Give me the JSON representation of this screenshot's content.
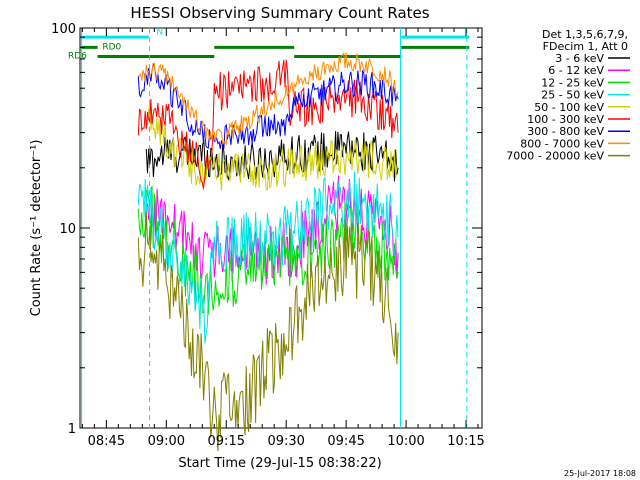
{
  "chart_data": {
    "type": "line",
    "title": "HESSI Observing Summary Count Rates",
    "xlabel": "Start Time (29-Jul-15 08:38:22)",
    "ylabel": "Count Rate (s⁻¹ detector⁻¹)",
    "y_scale": "log",
    "ylim": [
      1,
      100
    ],
    "xlim_minutes_of_day": [
      518.4,
      619.0
    ],
    "x_ticks": [
      {
        "label": "08:45",
        "t": 525
      },
      {
        "label": "09:00",
        "t": 540
      },
      {
        "label": "09:15",
        "t": 555
      },
      {
        "label": "09:30",
        "t": 570
      },
      {
        "label": "09:45",
        "t": 585
      },
      {
        "label": "10:00",
        "t": 600
      },
      {
        "label": "10:15",
        "t": 615
      }
    ],
    "y_ticks": [
      {
        "label": "1",
        "v": 1
      },
      {
        "label": "10",
        "v": 10
      },
      {
        "label": "100",
        "v": 100
      }
    ],
    "legend": {
      "header": [
        "Det 1,3,5,6,7,9,",
        "FDecim 1, Att 0"
      ],
      "placement": "right"
    },
    "time_stamp": "25-Jul-2017 18:08",
    "vertical_lines": {
      "solid_color": "#00e5e5",
      "solid_at": [
        518.8,
        598.6
      ],
      "dashed_at": [
        535.8,
        615.2
      ]
    },
    "flags": [
      {
        "name": "N",
        "color": "#00e5e5",
        "segments": [
          [
            518.6,
            535.6
          ],
          [
            598.8,
            615.8
          ]
        ],
        "level": 90
      },
      {
        "name": "RD0",
        "color": "#008000",
        "segments": [
          [
            518.6,
            522.8
          ],
          [
            552.0,
            572.0
          ],
          [
            598.8,
            615.8
          ]
        ],
        "level": 80
      },
      {
        "name": "RD6",
        "color": "#008000",
        "segments": [
          [
            522.8,
            552.0
          ],
          [
            572.0,
            598.8
          ]
        ],
        "level": 72
      }
    ],
    "series": [
      {
        "name": "3 - 6 keV",
        "color": "#000000",
        "x": [
          535,
          540,
          545,
          550,
          552,
          555,
          560,
          565,
          570,
          575,
          580,
          585,
          590,
          595,
          598
        ],
        "y": [
          21,
          24,
          23,
          23,
          22,
          21,
          21,
          22,
          23,
          24,
          24,
          25,
          24,
          22,
          20
        ]
      },
      {
        "name": "6 - 12 keV",
        "color": "#ff00ff",
        "x": [
          535,
          538,
          540,
          543,
          545,
          548,
          550,
          552,
          555,
          560,
          565,
          570,
          575,
          580,
          584,
          587,
          590,
          593,
          596,
          598
        ],
        "y": [
          11,
          12,
          10.5,
          9.5,
          8.5,
          8,
          7.5,
          7.5,
          7.5,
          7.5,
          7.5,
          7.7,
          8.5,
          11,
          14,
          13,
          11,
          10,
          9,
          7.5
        ]
      },
      {
        "name": "12 - 25 keV",
        "color": "#00e000",
        "x": [
          533,
          535,
          537,
          540,
          543,
          546,
          549,
          552,
          555,
          560,
          565,
          570,
          575,
          580,
          585,
          590,
          595,
          598
        ],
        "y": [
          12,
          13,
          11,
          8.5,
          7.5,
          6,
          5,
          5,
          5.5,
          6,
          6.5,
          7,
          7.5,
          8.5,
          9.5,
          9,
          7.5,
          6
        ]
      },
      {
        "name": "25 - 50 keV",
        "color": "#00e5e5",
        "x": [
          533,
          535,
          537,
          540,
          543,
          546,
          549,
          550,
          552,
          555,
          560,
          565,
          570,
          575,
          580,
          585,
          588,
          591,
          594,
          597,
          598
        ],
        "y": [
          14,
          13,
          11,
          9.5,
          6.5,
          5,
          4,
          3.5,
          8.5,
          8.5,
          8.5,
          8.5,
          9,
          10.5,
          12.5,
          13.5,
          13.5,
          12.5,
          11.5,
          10,
          9
        ]
      },
      {
        "name": "50 - 100 keV",
        "color": "#d0d000",
        "x": [
          535,
          537,
          540,
          543,
          546,
          549,
          552,
          555,
          560,
          565,
          570,
          575,
          580,
          585,
          590,
          595,
          598
        ],
        "y": [
          38,
          34,
          28,
          24,
          21,
          19,
          19,
          19,
          19,
          19.5,
          20,
          21,
          22,
          23,
          22,
          21,
          20
        ]
      },
      {
        "name": "100 - 300 keV",
        "color": "#ff0000",
        "x": [
          533,
          535,
          537,
          540,
          543,
          546,
          549,
          551,
          552,
          555,
          560,
          565,
          570,
          571,
          575,
          580,
          585,
          590,
          595,
          597,
          598
        ],
        "y": [
          35,
          37,
          40,
          35,
          29,
          24,
          20,
          18,
          48,
          49,
          50,
          52,
          56,
          39,
          40,
          42,
          46,
          42,
          37,
          33,
          30
        ]
      },
      {
        "name": "300 - 800 keV",
        "color": "#0000ff",
        "x": [
          533,
          535,
          537,
          540,
          543,
          546,
          549,
          552,
          555,
          560,
          565,
          570,
          571,
          575,
          580,
          585,
          590,
          595,
          598
        ],
        "y": [
          50,
          56,
          58,
          52,
          43,
          35,
          29,
          27,
          29,
          30,
          32,
          34,
          41,
          44,
          48,
          53,
          53,
          48,
          44
        ]
      },
      {
        "name": "800 - 7000 keV",
        "color": "#ff8c00",
        "x": [
          533,
          535,
          537,
          540,
          543,
          546,
          549,
          552,
          555,
          560,
          565,
          570,
          575,
          580,
          585,
          590,
          595,
          598
        ],
        "y": [
          54,
          60,
          63,
          58,
          49,
          39,
          31,
          28,
          29,
          34,
          40,
          48,
          56,
          64,
          68,
          66,
          58,
          48
        ]
      },
      {
        "name": "7000 - 20000 keV",
        "color": "#808000",
        "x": [
          533,
          535,
          537,
          540,
          543,
          546,
          549,
          550,
          552,
          555,
          560,
          565,
          570,
          575,
          580,
          585,
          590,
          595,
          598
        ],
        "y": [
          8,
          8,
          7.5,
          6,
          4,
          3,
          2,
          1.5,
          1.2,
          1.2,
          1.3,
          2,
          3,
          4.5,
          6,
          7.5,
          6.5,
          5,
          3
        ]
      }
    ]
  }
}
